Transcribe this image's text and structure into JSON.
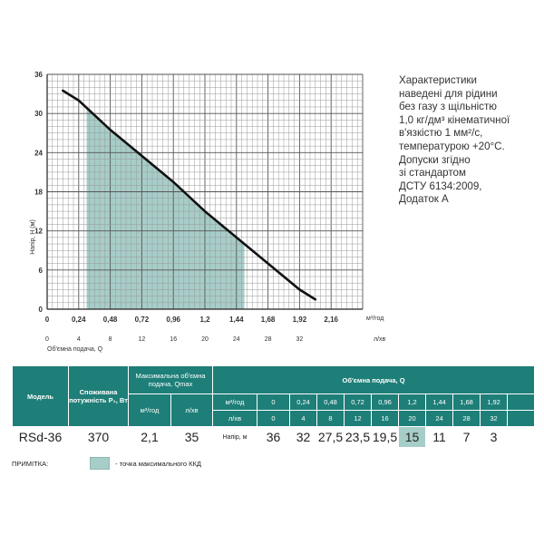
{
  "chart_data": {
    "type": "line",
    "ylabel": "Напір, Н (м)",
    "xlabel_top_unit": "м³/год",
    "xlabel_bottom": "Об'ємна подача, Q",
    "xlabel_bottom_unit": "л/хв",
    "yticks": [
      "0",
      "6",
      "12",
      "18",
      "24",
      "30",
      "36"
    ],
    "xticks_top": [
      "0",
      "0,24",
      "0,48",
      "0,72",
      "0,96",
      "1,2",
      "1,44",
      "1,68",
      "1,92",
      "2,16"
    ],
    "xticks_bottom": [
      "0",
      "4",
      "8",
      "12",
      "16",
      "20",
      "24",
      "28",
      "32"
    ],
    "ylim": [
      0,
      36
    ],
    "xlim": [
      0,
      2.4
    ],
    "grid": true,
    "series": [
      {
        "x": [
          0.12,
          0.24,
          0.48,
          0.72,
          0.96,
          1.2,
          1.44,
          1.68,
          1.92,
          2.04
        ],
        "y": [
          33.5,
          32,
          27.5,
          23.5,
          19.5,
          15,
          11,
          7,
          3,
          1.5
        ]
      }
    ],
    "efficiency_region": {
      "x_from": 0.3,
      "x_to": 1.5
    }
  },
  "note_text": "Характеристики\nнаведені для рідини\nбез газу з щільністю\n1,0 кг/дм³ кінематичної\nв'язкістю 1 мм²/с,\nтемпературою +20°С.\nДопуски згідно\nзі стандартом\nДСТУ 6134:2009,\nДодаток А",
  "table": {
    "h_model": "Модель",
    "h_power": "Споживана потужність P₁, Вт",
    "h_qmax": "Максимальна об'ємна подача, Qmax",
    "h_flow": "Об'ємна подача, Q",
    "unit_m3h": "м³/год",
    "unit_lmin": "л/хв",
    "head_label": "Напір, м",
    "m3h": [
      "0",
      "0,24",
      "0,48",
      "0,72",
      "0,96",
      "1,2",
      "1,44",
      "1,68",
      "1,92"
    ],
    "lmin": [
      "0",
      "4",
      "8",
      "12",
      "16",
      "20",
      "24",
      "28",
      "32"
    ],
    "model": "RSd-36",
    "power": "370",
    "qmax_m3h": "2,1",
    "qmax_lmin": "35",
    "head": [
      "36",
      "32",
      "27,5",
      "23,5",
      "19,5",
      "15",
      "11",
      "7",
      "3"
    ],
    "highlight_index": 5
  },
  "legend": {
    "label": "ПРИМІТКА:",
    "text": "- точка максимального ККД",
    "color": "#a7cdc9"
  }
}
